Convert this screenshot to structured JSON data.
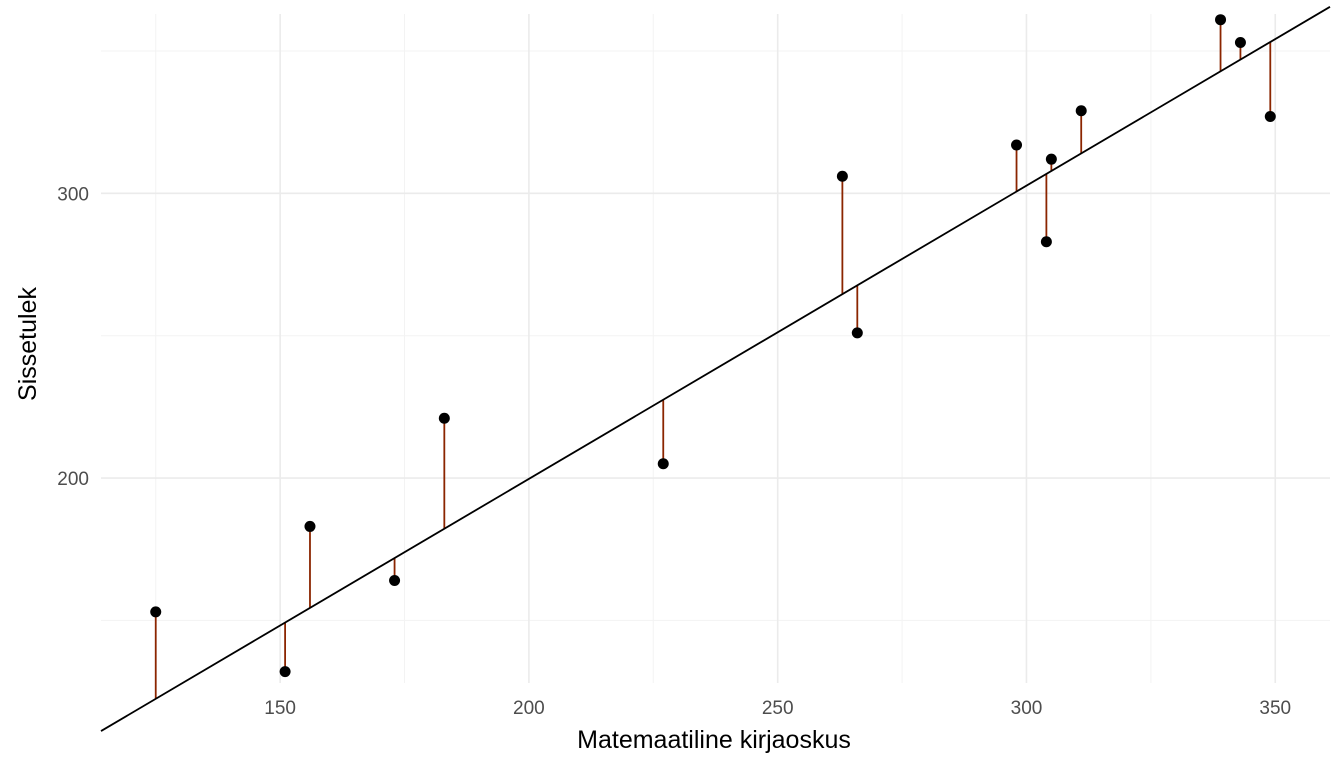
{
  "chart_data": {
    "type": "scatter",
    "xlabel": "Matemaatiline kirjaoskus",
    "ylabel": "Sissetulek",
    "xlim": [
      114,
      361
    ],
    "ylim": [
      128,
      363
    ],
    "x_ticks": [
      150,
      200,
      250,
      300,
      350
    ],
    "y_ticks": [
      200,
      300
    ],
    "grid": true,
    "points": [
      {
        "x": 125,
        "y": 153
      },
      {
        "x": 151,
        "y": 132
      },
      {
        "x": 156,
        "y": 183
      },
      {
        "x": 173,
        "y": 164
      },
      {
        "x": 183,
        "y": 221
      },
      {
        "x": 227,
        "y": 205
      },
      {
        "x": 263,
        "y": 306
      },
      {
        "x": 266,
        "y": 251
      },
      {
        "x": 298,
        "y": 317
      },
      {
        "x": 304,
        "y": 283
      },
      {
        "x": 305,
        "y": 312
      },
      {
        "x": 311,
        "y": 329
      },
      {
        "x": 339,
        "y": 361
      },
      {
        "x": 343,
        "y": 353
      },
      {
        "x": 349,
        "y": 327
      }
    ],
    "regression_line": {
      "intercept": -6.3,
      "slope": 1.03,
      "color": "#000000"
    },
    "residual_color": "#8b2500",
    "point_color": "#000000"
  }
}
